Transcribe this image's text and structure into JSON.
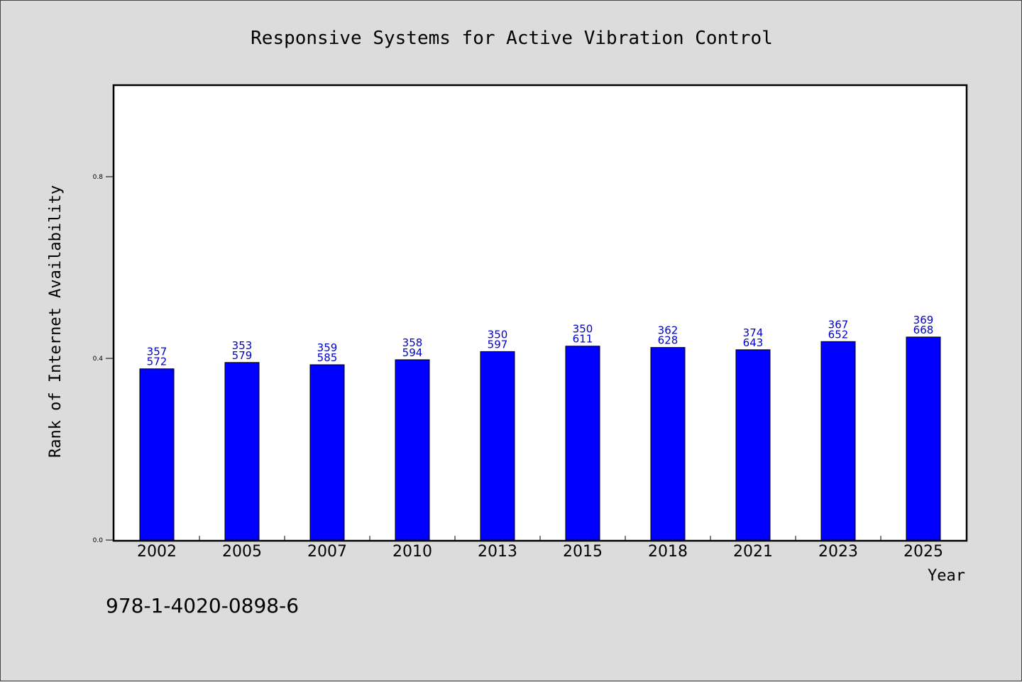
{
  "chart_data": {
    "type": "bar",
    "title": "Responsive Systems for Active Vibration Control",
    "xlabel": "Year",
    "ylabel": "Rank of Internet Availability",
    "categories": [
      "2002",
      "2005",
      "2007",
      "2010",
      "2013",
      "2015",
      "2018",
      "2021",
      "2023",
      "2025"
    ],
    "values": [
      0.377,
      0.391,
      0.386,
      0.397,
      0.415,
      0.427,
      0.424,
      0.419,
      0.437,
      0.447
    ],
    "labels_top": [
      "357",
      "353",
      "359",
      "358",
      "350",
      "350",
      "362",
      "374",
      "367",
      "369"
    ],
    "labels_bottom": [
      "572",
      "579",
      "585",
      "594",
      "597",
      "611",
      "628",
      "643",
      "652",
      "668"
    ],
    "ylim": [
      0,
      1.0
    ],
    "yticks": [
      "0.0",
      "0.4",
      "0.8"
    ],
    "bar_color": "#0000ff",
    "label_color": "#0000cc",
    "grid": false,
    "legend": "none"
  },
  "footer": "978-1-4020-0898-6"
}
